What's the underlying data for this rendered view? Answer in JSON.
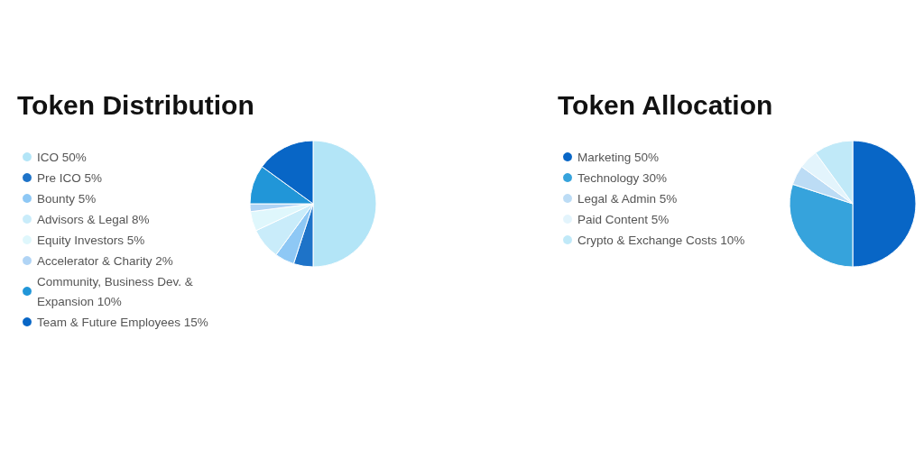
{
  "chart_data": [
    {
      "type": "pie",
      "title": "Token Distribution",
      "legend": "left",
      "categories": [
        "ICO",
        "Pre ICO",
        "Bounty",
        "Advisors & Legal",
        "Equity Investors",
        "Accelerator & Charity",
        "Community, Business Dev. & Expansion",
        "Team & Future Employees"
      ],
      "values": [
        50,
        5,
        5,
        8,
        5,
        2,
        10,
        15
      ],
      "value_labels": [
        "50%",
        "5%",
        "5%",
        "8%",
        "5%",
        "2%",
        "10%",
        "15%"
      ],
      "colors": [
        "#b3e5f7",
        "#1e73c8",
        "#8ec8f5",
        "#c9ecfa",
        "#dff7fc",
        "#b0d4f5",
        "#2196d8",
        "#0866c6"
      ]
    },
    {
      "type": "pie",
      "title": "Token Allocation",
      "legend": "left",
      "categories": [
        "Marketing",
        "Technology",
        "Legal & Admin",
        "Paid Content",
        "Crypto & Exchange Costs"
      ],
      "values": [
        50,
        30,
        5,
        5,
        10
      ],
      "value_labels": [
        "50%",
        "30%",
        "5%",
        "5%",
        "10%"
      ],
      "colors": [
        "#0866c6",
        "#36a3dc",
        "#bcdcf5",
        "#e3f4fc",
        "#c0e9f8"
      ]
    }
  ]
}
